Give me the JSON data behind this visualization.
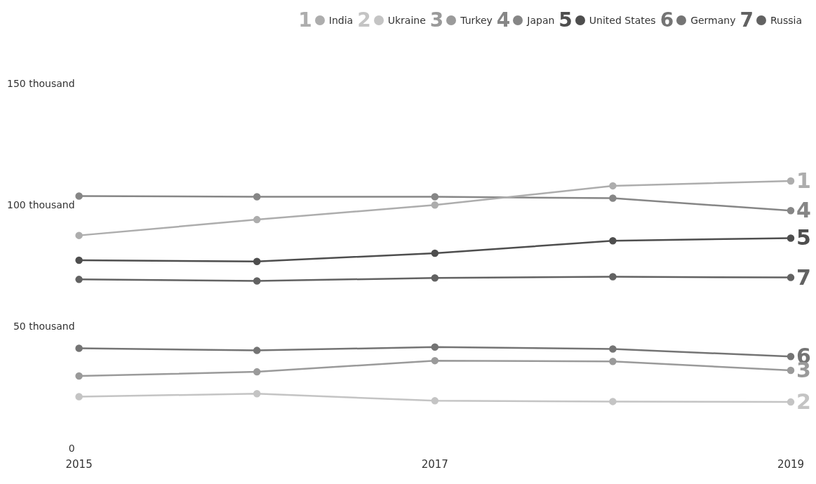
{
  "chart_data": {
    "type": "line",
    "x": [
      2015,
      2016,
      2017,
      2018,
      2019
    ],
    "xlim": [
      2015,
      2019
    ],
    "xticks": [
      2015,
      2017,
      2019
    ],
    "ylim": [
      0,
      150
    ],
    "yticks": [
      {
        "value": 0,
        "label": "0"
      },
      {
        "value": 50,
        "label": "50 thousand"
      },
      {
        "value": 100,
        "label": "100 thousand"
      },
      {
        "value": 150,
        "label": "150 thousand"
      }
    ],
    "legend": "top right",
    "marker": "circle",
    "series": [
      {
        "name": "India",
        "color": "#adadad",
        "values": [
          87.8,
          94.3,
          100.3,
          108.2,
          110.2
        ]
      },
      {
        "name": "Ukraine",
        "color": "#c4c4c4",
        "values": [
          21.5,
          22.7,
          19.8,
          19.5,
          19.3
        ]
      },
      {
        "name": "Turkey",
        "color": "#9a9a9a",
        "values": [
          30.0,
          31.7,
          36.3,
          36.0,
          32.3
        ]
      },
      {
        "name": "Japan",
        "color": "#868686",
        "values": [
          104.0,
          103.7,
          103.7,
          103.1,
          98.0
        ]
      },
      {
        "name": "United States",
        "color": "#4e4e4e",
        "values": [
          77.6,
          77.1,
          80.5,
          85.6,
          86.7
        ]
      },
      {
        "name": "Germany",
        "color": "#747474",
        "values": [
          41.4,
          40.5,
          41.9,
          41.1,
          38.0
        ]
      },
      {
        "name": "Russia",
        "color": "#626262",
        "values": [
          69.7,
          69.1,
          70.3,
          70.8,
          70.5
        ]
      }
    ],
    "annotations": [
      "1",
      "2",
      "3",
      "4",
      "5",
      "6",
      "7"
    ]
  }
}
